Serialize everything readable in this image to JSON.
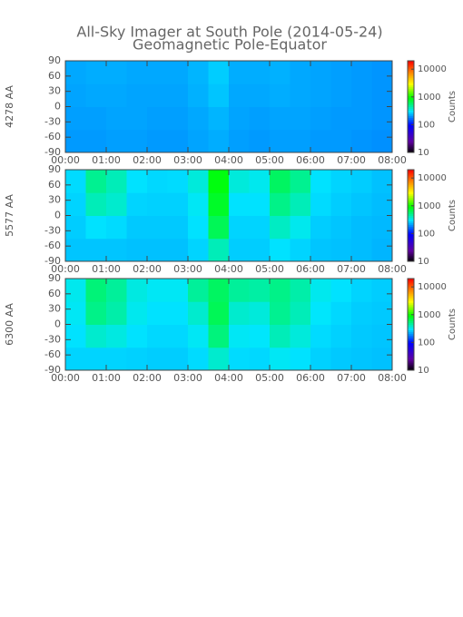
{
  "title": "All-Sky Imager at South Pole (2014-05-24)",
  "subtitle": "Geomagnetic Pole-Equator",
  "chart_data": [
    {
      "type": "heatmap",
      "ylabel": "4278 AA",
      "colorbar_label": "Counts",
      "colorscale": "log",
      "clim": [
        10,
        20000
      ],
      "cticks": [
        10,
        100,
        1000,
        10000
      ],
      "xlim": [
        0,
        8
      ],
      "xticks": [
        {
          "value": 0,
          "label": "00:00"
        },
        {
          "value": 1,
          "label": "01:00"
        },
        {
          "value": 2,
          "label": "02:00"
        },
        {
          "value": 3,
          "label": "03:00"
        },
        {
          "value": 4,
          "label": "04:00"
        },
        {
          "value": 5,
          "label": "05:00"
        },
        {
          "value": 6,
          "label": "06:00"
        },
        {
          "value": 7,
          "label": "07:00"
        },
        {
          "value": 8,
          "label": "08:00"
        }
      ],
      "ylim": [
        -90,
        90
      ],
      "yticks": [
        -90,
        -60,
        -30,
        0,
        30,
        60,
        90
      ],
      "xbins": [
        0,
        0.5,
        1,
        1.5,
        2,
        2.5,
        3,
        3.5,
        4,
        4.5,
        5,
        5.5,
        6,
        6.5,
        7,
        7.5,
        8
      ],
      "ybins": [
        -90,
        -45,
        0,
        45,
        90
      ],
      "values": [
        [
          210,
          210,
          215,
          215,
          210,
          210,
          220,
          230,
          215,
          210,
          215,
          215,
          210,
          210,
          205,
          200
        ],
        [
          215,
          215,
          220,
          220,
          215,
          215,
          225,
          240,
          220,
          215,
          220,
          220,
          215,
          210,
          210,
          205
        ],
        [
          220,
          225,
          225,
          220,
          220,
          220,
          235,
          260,
          225,
          225,
          230,
          225,
          220,
          215,
          210,
          205
        ],
        [
          225,
          230,
          230,
          225,
          225,
          225,
          240,
          270,
          230,
          230,
          235,
          225,
          220,
          215,
          210,
          205
        ]
      ]
    },
    {
      "type": "heatmap",
      "ylabel": "5577 AA",
      "colorbar_label": "Counts",
      "colorscale": "log",
      "clim": [
        10,
        20000
      ],
      "cticks": [
        10,
        100,
        1000,
        10000
      ],
      "xlim": [
        0,
        8
      ],
      "xticks": [
        {
          "value": 0,
          "label": "00:00"
        },
        {
          "value": 1,
          "label": "01:00"
        },
        {
          "value": 2,
          "label": "02:00"
        },
        {
          "value": 3,
          "label": "03:00"
        },
        {
          "value": 4,
          "label": "04:00"
        },
        {
          "value": 5,
          "label": "05:00"
        },
        {
          "value": 6,
          "label": "06:00"
        },
        {
          "value": 7,
          "label": "07:00"
        },
        {
          "value": 8,
          "label": "08:00"
        }
      ],
      "ylim": [
        -90,
        90
      ],
      "yticks": [
        -90,
        -60,
        -30,
        0,
        30,
        60,
        90
      ],
      "xbins": [
        0,
        0.5,
        1,
        1.5,
        2,
        2.5,
        3,
        3.5,
        4,
        4.5,
        5,
        5.5,
        6,
        6.5,
        7,
        7.5,
        8
      ],
      "ybins": [
        -90,
        -45,
        0,
        45,
        90
      ],
      "values": [
        [
          260,
          260,
          260,
          255,
          255,
          255,
          280,
          420,
          270,
          270,
          300,
          280,
          260,
          255,
          250,
          240
        ],
        [
          270,
          300,
          290,
          265,
          265,
          265,
          300,
          650,
          280,
          280,
          400,
          330,
          270,
          260,
          250,
          245
        ],
        [
          280,
          420,
          380,
          280,
          275,
          275,
          320,
          800,
          300,
          300,
          520,
          420,
          290,
          270,
          260,
          250
        ],
        [
          290,
          500,
          420,
          300,
          285,
          290,
          360,
          900,
          360,
          330,
          620,
          500,
          300,
          280,
          270,
          255
        ]
      ]
    },
    {
      "type": "heatmap",
      "ylabel": "6300 AA",
      "colorbar_label": "Counts",
      "colorscale": "log",
      "clim": [
        10,
        20000
      ],
      "cticks": [
        10,
        100,
        1000,
        10000
      ],
      "xlim": [
        0,
        8
      ],
      "xticks": [
        {
          "value": 0,
          "label": "00:00"
        },
        {
          "value": 1,
          "label": "01:00"
        },
        {
          "value": 2,
          "label": "02:00"
        },
        {
          "value": 3,
          "label": "03:00"
        },
        {
          "value": 4,
          "label": "04:00"
        },
        {
          "value": 5,
          "label": "05:00"
        },
        {
          "value": 6,
          "label": "06:00"
        },
        {
          "value": 7,
          "label": "07:00"
        },
        {
          "value": 8,
          "label": "08:00"
        }
      ],
      "ylim": [
        -90,
        90
      ],
      "yticks": [
        -90,
        -60,
        -30,
        0,
        30,
        60,
        90
      ],
      "xbins": [
        0,
        0.5,
        1,
        1.5,
        2,
        2.5,
        3,
        3.5,
        4,
        4.5,
        5,
        5.5,
        6,
        6.5,
        7,
        7.5,
        8
      ],
      "ybins": [
        -90,
        -45,
        0,
        45,
        90
      ],
      "values": [
        [
          280,
          280,
          280,
          275,
          270,
          270,
          290,
          380,
          290,
          285,
          320,
          300,
          275,
          265,
          260,
          255
        ],
        [
          300,
          380,
          350,
          300,
          285,
          285,
          320,
          550,
          320,
          310,
          420,
          360,
          290,
          275,
          265,
          260
        ],
        [
          320,
          520,
          450,
          330,
          300,
          300,
          380,
          650,
          380,
          360,
          500,
          420,
          310,
          285,
          270,
          265
        ],
        [
          330,
          560,
          480,
          350,
          320,
          320,
          480,
          620,
          480,
          460,
          520,
          450,
          330,
          300,
          280,
          270
        ]
      ]
    }
  ]
}
